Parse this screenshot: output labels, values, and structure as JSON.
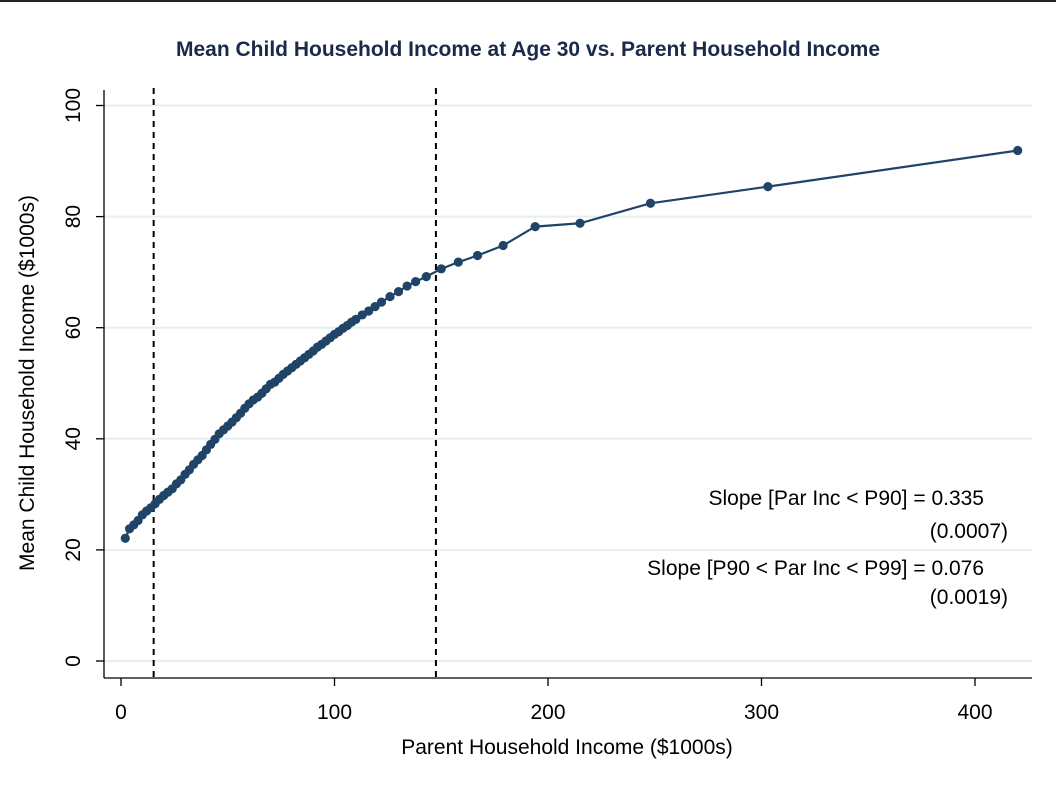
{
  "chart_data": {
    "type": "line",
    "title": "Mean Child Household Income at Age 30 vs. Parent Household Income",
    "xlabel": "Parent Household Income ($1000s)",
    "ylabel": "Mean Child Household Income ($1000s)",
    "xlim": [
      0,
      425
    ],
    "ylim": [
      0,
      100
    ],
    "xticks": [
      0,
      100,
      200,
      300,
      400
    ],
    "yticks": [
      0,
      20,
      40,
      60,
      80,
      100
    ],
    "grid": "horizontal",
    "vlines": [
      15.3,
      147.5
    ],
    "colors": {
      "series": "#1f4468",
      "grid": "#e6efef",
      "title": "#1a2a4a"
    },
    "series": [
      {
        "x": [
          2,
          4,
          6,
          8,
          10,
          12,
          14,
          16,
          18,
          20,
          22,
          24,
          26,
          28,
          30,
          32,
          34,
          36,
          38,
          40,
          42,
          44,
          46,
          48,
          50,
          52,
          54,
          56,
          58,
          60,
          62,
          64,
          66,
          68,
          70,
          72,
          74,
          76,
          78,
          80,
          82,
          84,
          86,
          88,
          90,
          92,
          94,
          96,
          98,
          100,
          102,
          104,
          106,
          108,
          110,
          113,
          116,
          119,
          122,
          126,
          130,
          134,
          138,
          143,
          150,
          158,
          167,
          179,
          194,
          215,
          248,
          303,
          420
        ],
        "y": [
          22.1,
          23.8,
          24.5,
          25.3,
          26.3,
          27.0,
          27.6,
          28.3,
          29.1,
          29.8,
          30.4,
          31.0,
          31.9,
          32.6,
          33.6,
          34.4,
          35.4,
          36.2,
          37.0,
          38.0,
          39.0,
          39.9,
          40.9,
          41.6,
          42.3,
          43.0,
          43.8,
          44.6,
          45.5,
          46.3,
          47.0,
          47.5,
          48.2,
          49.0,
          49.8,
          50.2,
          50.9,
          51.6,
          52.2,
          52.8,
          53.4,
          54.0,
          54.6,
          55.2,
          55.8,
          56.5,
          57.0,
          57.6,
          58.2,
          58.8,
          59.3,
          59.9,
          60.4,
          61.0,
          61.5,
          62.3,
          63.0,
          63.8,
          64.6,
          65.6,
          66.5,
          67.5,
          68.3,
          69.2,
          70.6,
          71.8,
          73.0,
          74.8,
          78.2,
          78.8,
          82.4,
          85.4,
          91.9
        ]
      }
    ],
    "annotations": [
      {
        "text": "Slope [Par Inc < P90] = 0.335",
        "align": "end"
      },
      {
        "text": "(0.0007)",
        "align": "end"
      },
      {
        "text": "Slope [P90 < Par Inc < P99] = 0.076",
        "align": "end"
      },
      {
        "text": "(0.0019)",
        "align": "end"
      }
    ]
  }
}
